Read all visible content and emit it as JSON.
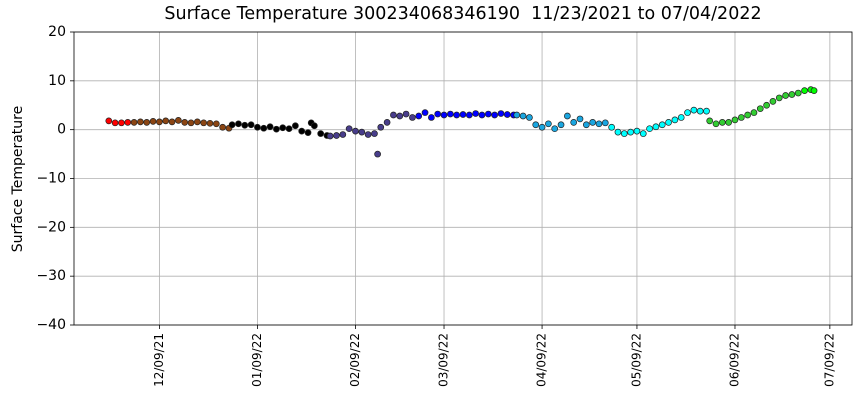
{
  "chart_data": {
    "type": "scatter",
    "title": "Surface Temperature 300234068346190  11/23/2021 to 07/04/2022",
    "ylabel": "Surface Temperature",
    "xlim": [
      "2021-11-12",
      "2022-07-16"
    ],
    "xticks": [
      {
        "value": "2021-12-09",
        "label": "12/09/21"
      },
      {
        "value": "2022-01-09",
        "label": "01/09/22"
      },
      {
        "value": "2022-02-09",
        "label": "02/09/22"
      },
      {
        "value": "2022-03-09",
        "label": "03/09/22"
      },
      {
        "value": "2022-04-09",
        "label": "04/09/22"
      },
      {
        "value": "2022-05-09",
        "label": "05/09/22"
      },
      {
        "value": "2022-06-09",
        "label": "06/09/22"
      },
      {
        "value": "2022-07-09",
        "label": "07/09/22"
      }
    ],
    "ylim": [
      -40,
      20
    ],
    "yticks": [
      {
        "value": -40,
        "label": "−40"
      },
      {
        "value": -30,
        "label": "−30"
      },
      {
        "value": -20,
        "label": "−20"
      },
      {
        "value": -10,
        "label": "−10"
      },
      0,
      10,
      20
    ],
    "grid": true,
    "series": [
      {
        "color": "#ff0000",
        "x": [
          "2021-11-23",
          "2021-11-25",
          "2021-11-27",
          "2021-11-29"
        ],
        "values": [
          1.8,
          1.4,
          1.4,
          1.5
        ]
      },
      {
        "color": "#8b4513",
        "x": [
          "2021-12-01",
          "2021-12-03",
          "2021-12-05",
          "2021-12-07",
          "2021-12-09",
          "2021-12-11",
          "2021-12-13",
          "2021-12-15",
          "2021-12-17",
          "2021-12-19",
          "2021-12-21",
          "2021-12-23",
          "2021-12-25",
          "2021-12-27",
          "2021-12-29",
          "2021-12-31"
        ],
        "values": [
          1.5,
          1.6,
          1.5,
          1.7,
          1.6,
          1.8,
          1.6,
          1.9,
          1.5,
          1.4,
          1.6,
          1.4,
          1.3,
          1.2,
          0.5,
          0.3
        ]
      },
      {
        "color": "#000000",
        "x": [
          "2022-01-01",
          "2022-01-03",
          "2022-01-05",
          "2022-01-07",
          "2022-01-09",
          "2022-01-11",
          "2022-01-13",
          "2022-01-15",
          "2022-01-17",
          "2022-01-19",
          "2022-01-21",
          "2022-01-23",
          "2022-01-25",
          "2022-01-26",
          "2022-01-27",
          "2022-01-29",
          "2022-01-31"
        ],
        "values": [
          1.0,
          1.2,
          0.9,
          1.0,
          0.5,
          0.3,
          0.6,
          0.1,
          0.4,
          0.2,
          0.8,
          -0.3,
          -0.6,
          1.4,
          0.8,
          -0.8,
          -1.2
        ]
      },
      {
        "color": "#483d8b",
        "x": [
          "2022-02-01",
          "2022-02-03",
          "2022-02-05",
          "2022-02-07",
          "2022-02-09",
          "2022-02-11",
          "2022-02-13",
          "2022-02-15",
          "2022-02-16",
          "2022-02-17",
          "2022-02-19",
          "2022-02-21",
          "2022-02-23",
          "2022-02-25",
          "2022-02-27"
        ],
        "values": [
          -1.3,
          -1.2,
          -1.0,
          0.2,
          -0.3,
          -0.5,
          -1.0,
          -0.8,
          -5,
          0.5,
          1.5,
          3.0,
          2.8,
          3.2,
          2.5
        ]
      },
      {
        "color": "#0000ff",
        "x": [
          "2022-03-01",
          "2022-03-03",
          "2022-03-05",
          "2022-03-07",
          "2022-03-09",
          "2022-03-11",
          "2022-03-13",
          "2022-03-15",
          "2022-03-17",
          "2022-03-19",
          "2022-03-21",
          "2022-03-23",
          "2022-03-25",
          "2022-03-27",
          "2022-03-29",
          "2022-03-31"
        ],
        "values": [
          2.8,
          3.5,
          2.5,
          3.2,
          3.0,
          3.2,
          3.0,
          3.1,
          3.0,
          3.3,
          3.0,
          3.2,
          3.0,
          3.3,
          3.1,
          3.0
        ]
      },
      {
        "color": "#1aa6e0",
        "x": [
          "2022-04-01",
          "2022-04-03",
          "2022-04-05",
          "2022-04-07",
          "2022-04-09",
          "2022-04-11",
          "2022-04-13",
          "2022-04-15",
          "2022-04-17",
          "2022-04-19",
          "2022-04-21",
          "2022-04-23",
          "2022-04-25",
          "2022-04-27",
          "2022-04-29"
        ],
        "values": [
          3.0,
          2.8,
          2.5,
          1.0,
          0.5,
          1.2,
          0.2,
          1.0,
          2.8,
          1.5,
          2.2,
          1.0,
          1.5,
          1.2,
          1.4
        ]
      },
      {
        "color": "#00ffff",
        "x": [
          "2022-05-01",
          "2022-05-03",
          "2022-05-05",
          "2022-05-07",
          "2022-05-09",
          "2022-05-11",
          "2022-05-13",
          "2022-05-15",
          "2022-05-17",
          "2022-05-19",
          "2022-05-21",
          "2022-05-23",
          "2022-05-25",
          "2022-05-27",
          "2022-05-29",
          "2022-05-31"
        ],
        "values": [
          0.5,
          -0.5,
          -0.8,
          -0.5,
          -0.3,
          -0.8,
          0.2,
          0.6,
          1.0,
          1.5,
          2.0,
          2.5,
          3.5,
          4.0,
          3.8,
          3.8
        ]
      },
      {
        "color": "#32cd32",
        "x": [
          "2022-06-01",
          "2022-06-03",
          "2022-06-05",
          "2022-06-07",
          "2022-06-09",
          "2022-06-11",
          "2022-06-13",
          "2022-06-15",
          "2022-06-17",
          "2022-06-19",
          "2022-06-21",
          "2022-06-23",
          "2022-06-25",
          "2022-06-27",
          "2022-06-29"
        ],
        "values": [
          1.8,
          1.2,
          1.5,
          1.5,
          2.0,
          2.5,
          3.0,
          3.5,
          4.3,
          5.0,
          5.8,
          6.5,
          7.0,
          7.2,
          7.5
        ]
      },
      {
        "color": "#00ff00",
        "x": [
          "2022-07-01",
          "2022-07-03",
          "2022-07-04"
        ],
        "values": [
          8.0,
          8.2,
          8.0
        ]
      }
    ]
  }
}
